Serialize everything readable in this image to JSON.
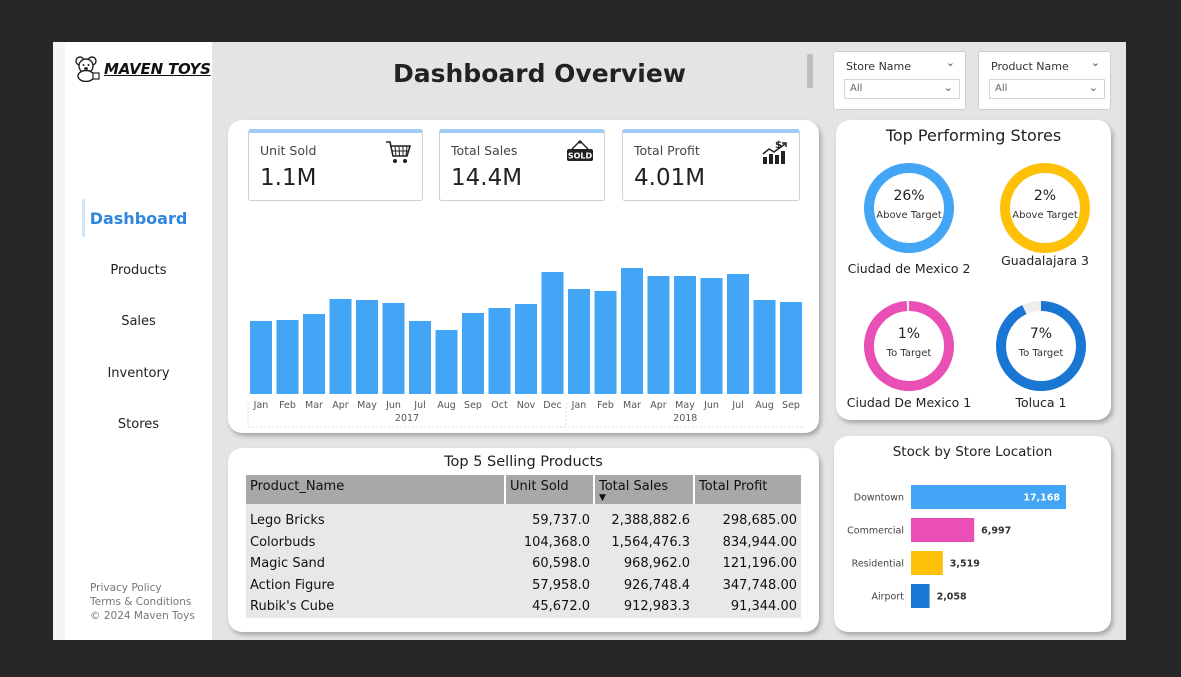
{
  "brand": {
    "name": "MAVEN TOYS"
  },
  "header": {
    "title": "Dashboard Overview"
  },
  "sidebar": {
    "items": [
      {
        "label": "Dashboard",
        "active": true
      },
      {
        "label": "Products"
      },
      {
        "label": "Sales"
      },
      {
        "label": "Inventory"
      },
      {
        "label": "Stores"
      }
    ],
    "footer": [
      "Privacy Policy",
      "Terms & Conditions",
      "© 2024 Maven Toys"
    ]
  },
  "filters": [
    {
      "label": "Store Name",
      "value": "All"
    },
    {
      "label": "Product Name",
      "value": "All"
    }
  ],
  "kpis": [
    {
      "label": "Unit Sold",
      "value": "1.1M",
      "icon": "shopping-cart-icon"
    },
    {
      "label": "Total Sales",
      "value": "14.4M",
      "icon": "sold-sign-icon"
    },
    {
      "label": "Total Profit",
      "value": "4.01M",
      "icon": "profit-chart-icon"
    }
  ],
  "monthly_chart": {
    "color": "#42a5f5",
    "months": [
      "Jan",
      "Feb",
      "Mar",
      "Apr",
      "May",
      "Jun",
      "Jul",
      "Aug",
      "Sep",
      "Oct",
      "Nov",
      "Dec",
      "Jan",
      "Feb",
      "Mar",
      "Apr",
      "May",
      "Jun",
      "Jul",
      "Aug",
      "Sep"
    ],
    "years": [
      "2017",
      "2018"
    ]
  },
  "chart_data": [
    {
      "type": "bar",
      "categories": [
        "Jan 2017",
        "Feb 2017",
        "Mar 2017",
        "Apr 2017",
        "May 2017",
        "Jun 2017",
        "Jul 2017",
        "Aug 2017",
        "Sep 2017",
        "Oct 2017",
        "Nov 2017",
        "Dec 2017",
        "Jan 2018",
        "Feb 2018",
        "Mar 2018",
        "Apr 2018",
        "May 2018",
        "Jun 2018",
        "Jul 2018",
        "Aug 2018",
        "Sep 2018"
      ],
      "values": [
        73,
        74,
        80,
        95,
        94,
        91,
        73,
        64,
        81,
        86,
        90,
        122,
        105,
        103,
        126,
        118,
        118,
        116,
        120,
        94,
        92
      ],
      "title": "",
      "xlabel": "",
      "ylabel": "",
      "ylim": [
        0,
        130
      ],
      "grid": false
    },
    {
      "type": "bar",
      "orientation": "horizontal",
      "title": "Stock by Store Location",
      "categories": [
        "Downtown",
        "Commercial",
        "Residential",
        "Airport"
      ],
      "values": [
        17168,
        6997,
        3519,
        2058
      ],
      "labels": [
        "17,168",
        "6,997",
        "3,519",
        "2,058"
      ],
      "colors": [
        "#42a5f5",
        "#e94fb5",
        "#ffc107",
        "#1976d2"
      ],
      "xlim": [
        0,
        17168
      ]
    }
  ],
  "stores": {
    "title": "Top Performing Stores",
    "items": [
      {
        "pct": "26%",
        "status": "Above Target",
        "name": "Ciudad de Mexico 2",
        "color": "#42a5f5",
        "fill": 1.0
      },
      {
        "pct": "2%",
        "status": "Above Target",
        "name": "Guadalajara 3",
        "color": "#ffc107",
        "fill": 1.0
      },
      {
        "pct": "1%",
        "status": "To Target",
        "name": "Ciudad De Mexico 1",
        "color": "#e94fb5",
        "fill": 0.99
      },
      {
        "pct": "7%",
        "status": "To Target",
        "name": "Toluca 1",
        "color": "#1976d2",
        "fill": 0.93
      }
    ]
  },
  "products_table": {
    "title": "Top 5 Selling Products",
    "columns": [
      "Product_Name",
      "Unit Sold",
      "Total Sales",
      "Total Profit"
    ],
    "rows": [
      [
        "Lego Bricks",
        "59,737.0",
        "2,388,882.6",
        "298,685.00"
      ],
      [
        "Colorbuds",
        "104,368.0",
        "1,564,476.3",
        "834,944.00"
      ],
      [
        "Magic Sand",
        "60,598.0",
        "968,962.0",
        "121,196.00"
      ],
      [
        "Action Figure",
        "57,958.0",
        "926,748.4",
        "347,748.00"
      ],
      [
        "Rubik's Cube",
        "45,672.0",
        "912,983.3",
        "91,344.00"
      ]
    ]
  },
  "stock_chart": {
    "title": "Stock by Store Location"
  }
}
